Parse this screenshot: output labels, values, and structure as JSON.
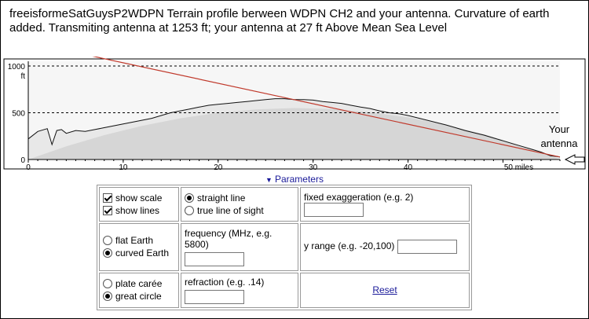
{
  "caption": "freeisformeSatGuysP2WDPN  Terrain profile berween WDPN CH2 and your antenna. Curvature of earth added. Transmiting antenna at 1253 ft; your antenna at 27 ft Above Mean Sea Level",
  "chart_data": {
    "type": "area",
    "x_unit_label": "miles",
    "y_unit_label": "ft",
    "xlim": [
      0,
      56
    ],
    "ylim": [
      0,
      1050
    ],
    "x_ticks": [
      "0",
      "10",
      "20",
      "30",
      "40",
      "50 miles"
    ],
    "x_tick_values": [
      0,
      10,
      20,
      30,
      40,
      50
    ],
    "y_ticks": [
      "0",
      "500",
      "1000"
    ],
    "y_tick_values": [
      0,
      500,
      1000
    ],
    "grid": "dashed horizontal at 500 and 1000",
    "terrain": {
      "x": [
        0,
        1,
        2,
        2.5,
        3,
        3.5,
        4,
        5,
        6,
        7,
        8,
        9,
        10,
        11,
        12,
        13,
        14,
        15,
        16,
        17,
        18,
        19,
        20,
        21,
        22,
        23,
        24,
        25,
        26,
        27,
        28,
        29,
        30,
        31,
        32,
        33,
        34,
        35,
        36,
        37,
        38,
        39,
        40,
        41,
        42,
        43,
        44,
        45,
        46,
        47,
        48,
        49,
        50,
        51,
        52,
        53,
        54,
        55,
        56
      ],
      "y": [
        220,
        300,
        330,
        160,
        310,
        320,
        280,
        310,
        300,
        320,
        340,
        360,
        380,
        400,
        420,
        440,
        470,
        500,
        520,
        540,
        560,
        580,
        590,
        600,
        610,
        620,
        630,
        640,
        650,
        650,
        640,
        640,
        635,
        620,
        610,
        600,
        580,
        560,
        545,
        520,
        500,
        490,
        470,
        445,
        420,
        395,
        370,
        340,
        310,
        285,
        260,
        230,
        200,
        170,
        140,
        110,
        80,
        40,
        27
      ]
    },
    "curvature_bulge": {
      "x": [
        0,
        4,
        8,
        12,
        16,
        20,
        24,
        28,
        32,
        36,
        40,
        44,
        48,
        52,
        56
      ],
      "y": [
        0,
        140,
        260,
        360,
        440,
        500,
        535,
        550,
        540,
        505,
        450,
        370,
        270,
        145,
        0
      ]
    },
    "line_of_sight": {
      "x": [
        0,
        56
      ],
      "y": [
        1253,
        27
      ],
      "color": "#c0392b"
    },
    "terrain_fill": "#e8e8e8",
    "bulge_fill": "#d6d6d6",
    "plot_bg": "#f6f6f6"
  },
  "endpoint_label": [
    "Your",
    "antenna"
  ],
  "params_toggle": {
    "label": "Parameters",
    "icon": "triangle-down-icon"
  },
  "params": {
    "show_scale": {
      "label": "show scale",
      "checked": true
    },
    "show_lines": {
      "label": "show lines",
      "checked": true
    },
    "straight_line": {
      "label": "straight line",
      "checked": true
    },
    "true_line_of_sight": {
      "label": "true line of sight",
      "checked": false
    },
    "fixed_exaggeration": {
      "label": "fixed exaggeration (e.g. 2)",
      "value": ""
    },
    "flat_earth": {
      "label": "flat Earth",
      "checked": false
    },
    "curved_earth": {
      "label": "curved Earth",
      "checked": true
    },
    "frequency": {
      "label": "frequency (MHz, e.g. 5800)",
      "value": ""
    },
    "y_range": {
      "label": "y range (e.g. -20,100)",
      "value": ""
    },
    "plate_caree": {
      "label": "plate carée",
      "checked": false
    },
    "great_circle": {
      "label": "great circle",
      "checked": true
    },
    "refraction": {
      "label": "refraction (e.g. .14)",
      "value": ""
    },
    "reset": {
      "label": "Reset"
    }
  }
}
